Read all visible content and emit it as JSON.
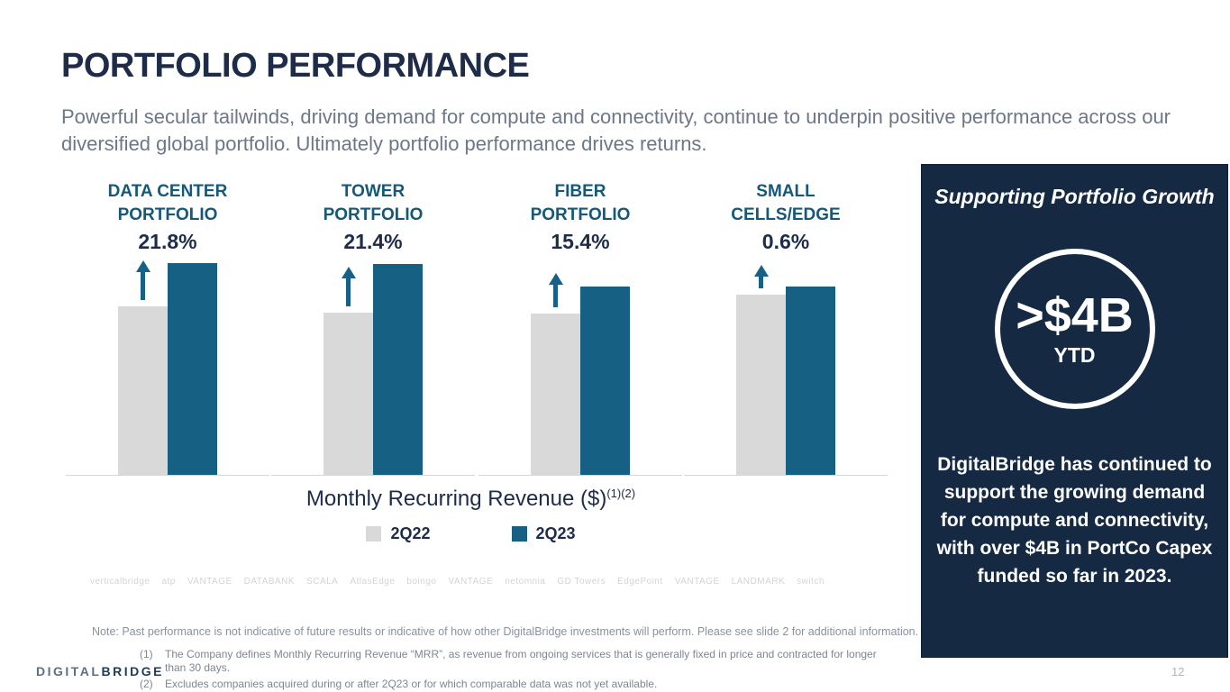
{
  "slide": {
    "title": "PORTFOLIO PERFORMANCE",
    "subtitle": "Powerful secular tailwinds, driving demand for compute and connectivity, continue to underpin positive performance across our diversified global portfolio. Ultimately portfolio performance drives returns.",
    "page_number": "12",
    "brand_part1": "DIGITAL",
    "brand_part2": "BRIDGE"
  },
  "chart_data": {
    "type": "bar",
    "title": "Monthly Recurring Revenue ($)",
    "title_superscript": "(1)(2)",
    "legend": [
      {
        "label": "2Q22",
        "color": "#d9d9d9"
      },
      {
        "label": "2Q23",
        "color": "#156083"
      }
    ],
    "legend_position": "bottom-center",
    "grid": false,
    "note": "Each portfolio group shows indexed MRR growth 2Q22 vs 2Q23; bars stylized, annotated with growth %",
    "groups": [
      {
        "label_line1": "DATA CENTER",
        "label_line2": "PORTFOLIO",
        "growth_label": "21.8%",
        "values": {
          "2Q22": 100,
          "2Q23": 121.8
        },
        "render": {
          "h_2q22": 187,
          "h_2q23": 235,
          "arrow_h": 44
        }
      },
      {
        "label_line1": "TOWER",
        "label_line2": "PORTFOLIO",
        "growth_label": "21.4%",
        "values": {
          "2Q22": 100,
          "2Q23": 121.4
        },
        "render": {
          "h_2q22": 180,
          "h_2q23": 234,
          "arrow_h": 44
        }
      },
      {
        "label_line1": "FIBER",
        "label_line2": "PORTFOLIO",
        "growth_label": "15.4%",
        "values": {
          "2Q22": 100,
          "2Q23": 115.4
        },
        "render": {
          "h_2q22": 179,
          "h_2q23": 209,
          "arrow_h": 38
        }
      },
      {
        "label_line1": "SMALL",
        "label_line2": "CELLS/EDGE",
        "growth_label": "0.6%",
        "values": {
          "2Q22": 100,
          "2Q23": 100.6
        },
        "render": {
          "h_2q22": 200,
          "h_2q23": 209,
          "arrow_h": 26
        }
      }
    ]
  },
  "portfolio_logos": [
    "verticalbridge",
    "atp",
    "VANTAGE",
    "DATABANK",
    "SCALA",
    "AtlasEdge",
    "boingo",
    "VANTAGE",
    "netomnia",
    "GD Towers",
    "EdgePoint",
    "VANTAGE",
    "LANDMARK",
    "switch"
  ],
  "footer": {
    "note": "Note: Past performance is not indicative of future results or indicative of how other DigitalBridge investments will perform.  Please see slide 2 for additional information.",
    "fn1_num": "(1)",
    "fn1": "The Company defines Monthly Recurring Revenue “MRR”, as revenue from ongoing services that is generally fixed in price and contracted for longer than 30 days.",
    "fn2_num": "(2)",
    "fn2": "Excludes companies acquired during or after 2Q23 or for which comparable data was not yet available."
  },
  "panel": {
    "heading": "Supporting Portfolio Growth",
    "circle_value": ">$4B",
    "circle_sub": "YTD",
    "body": "DigitalBridge has continued to support the growing demand for compute and connectivity, with over $4B in PortCo Capex funded so far in 2023.",
    "bg_color": "#152a42"
  }
}
